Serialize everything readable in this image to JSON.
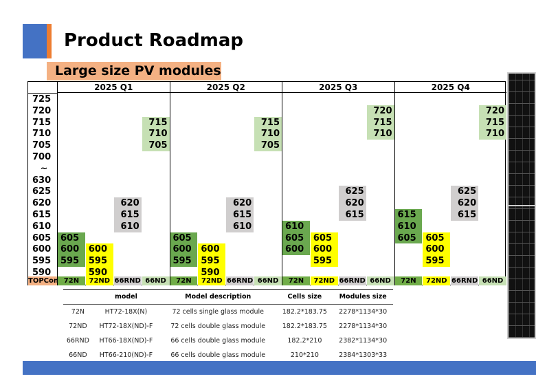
{
  "title": "Product Roadmap",
  "subtitle": "Large size PV modules",
  "rows": [
    "725",
    "720",
    "715",
    "710",
    "705",
    "700",
    "~",
    "630",
    "625",
    "620",
    "615",
    "610",
    "605",
    "600",
    "595",
    "590"
  ],
  "footer_label": "TOPCon",
  "colors": {
    "72N": "#6aa84f",
    "72ND": "#ffff00",
    "66RND": "#d0cece",
    "66ND": "#c6e0b4",
    "footer_72N": "#70ad47",
    "footer_label": "#f4b183",
    "accent_blue": "#4472c4",
    "accent_orange": "#ed7d31"
  },
  "quarters": [
    {
      "label": "2025 Q1",
      "columns": [
        {
          "name": "72N",
          "values": [
            "605",
            "600",
            "595"
          ]
        },
        {
          "name": "72ND",
          "values": [
            "600",
            "595",
            "590"
          ]
        },
        {
          "name": "66RND",
          "values": [
            "620",
            "615",
            "610"
          ]
        },
        {
          "name": "66ND",
          "values": [
            "715",
            "710",
            "705"
          ]
        }
      ]
    },
    {
      "label": "2025 Q2",
      "columns": [
        {
          "name": "72N",
          "values": [
            "605",
            "600",
            "595"
          ]
        },
        {
          "name": "72ND",
          "values": [
            "600",
            "595",
            "590"
          ]
        },
        {
          "name": "66RND",
          "values": [
            "620",
            "615",
            "610"
          ]
        },
        {
          "name": "66ND",
          "values": [
            "715",
            "710",
            "705"
          ]
        }
      ]
    },
    {
      "label": "2025 Q3",
      "columns": [
        {
          "name": "72N",
          "values": [
            "610",
            "605",
            "600"
          ]
        },
        {
          "name": "72ND",
          "values": [
            "605",
            "600",
            "595"
          ]
        },
        {
          "name": "66RND",
          "values": [
            "625",
            "620",
            "615"
          ]
        },
        {
          "name": "66ND",
          "values": [
            "720",
            "715",
            "710"
          ]
        }
      ]
    },
    {
      "label": "2025 Q4",
      "columns": [
        {
          "name": "72N",
          "values": [
            "615",
            "610",
            "605"
          ]
        },
        {
          "name": "72ND",
          "values": [
            "605",
            "600",
            "595"
          ]
        },
        {
          "name": "66RND",
          "values": [
            "625",
            "620",
            "615"
          ]
        },
        {
          "name": "66ND",
          "values": [
            "720",
            "715",
            "710"
          ]
        }
      ]
    }
  ],
  "spec_table": {
    "headers": [
      "",
      "model",
      "Model description",
      "Cells size",
      "Modules size"
    ],
    "rows": [
      [
        "72N",
        "HT72-18X(N)",
        "72 cells single glass module",
        "182.2*183.75",
        "2278*1134*30"
      ],
      [
        "72ND",
        "HT72-18X(ND)-F",
        "72 cells double glass module",
        "182.2*183.75",
        "2278*1134*30"
      ],
      [
        "66RND",
        "HT66-18X(ND)-F",
        "66 cells double glass module",
        "182.2*210",
        "2382*1134*30"
      ],
      [
        "66ND",
        "HT66-210(ND)-F",
        "66 cells double glass module",
        "210*210",
        "2384*1303*33"
      ]
    ]
  }
}
